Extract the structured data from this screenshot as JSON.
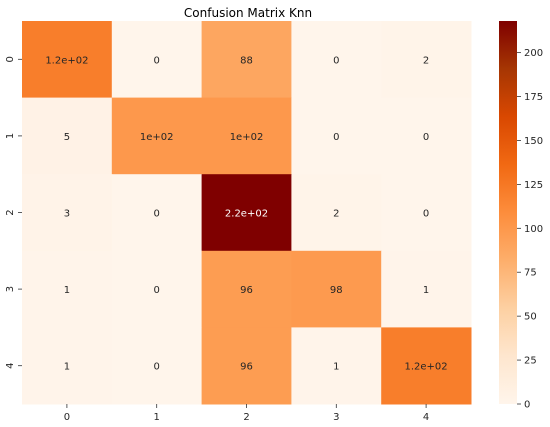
{
  "chart_data": {
    "type": "heatmap",
    "title": "Confusion Matrix Knn",
    "xlabel": "",
    "ylabel": "",
    "x_categories": [
      "0",
      "1",
      "2",
      "3",
      "4"
    ],
    "y_categories": [
      "0",
      "1",
      "2",
      "3",
      "4"
    ],
    "values": [
      [
        120,
        0,
        88,
        0,
        2
      ],
      [
        5,
        100,
        100,
        0,
        0
      ],
      [
        3,
        0,
        220,
        2,
        0
      ],
      [
        1,
        0,
        96,
        98,
        1
      ],
      [
        1,
        0,
        96,
        1,
        120
      ]
    ],
    "annotations": [
      [
        "1.2e+02",
        "0",
        "88",
        "0",
        "2"
      ],
      [
        "5",
        "1e+02",
        "1e+02",
        "0",
        "0"
      ],
      [
        "3",
        "0",
        "2.2e+02",
        "2",
        "0"
      ],
      [
        "1",
        "0",
        "96",
        "98",
        "1"
      ],
      [
        "1",
        "0",
        "96",
        "1",
        "1.2e+02"
      ]
    ],
    "colormap": "OrRd-like",
    "color_stops": [
      "#fff5eb",
      "#fee6ce",
      "#fdd0a2",
      "#fdae6b",
      "#fd8d3c",
      "#f16913",
      "#d94801",
      "#a63603",
      "#7f0000"
    ],
    "colorbar": {
      "range": [
        0,
        218
      ],
      "ticks": [
        0,
        25,
        50,
        75,
        100,
        125,
        150,
        175,
        200
      ],
      "tick_labels": [
        "0",
        "25",
        "50",
        "75",
        "100",
        "125",
        "150",
        "175",
        "200"
      ]
    },
    "grid": false,
    "legend": "colorbar-right"
  }
}
